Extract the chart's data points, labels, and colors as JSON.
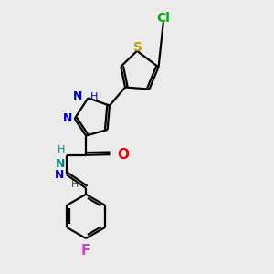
{
  "background_color": "#ebebeb",
  "bond_color": "#000000",
  "bond_width": 1.6,
  "figsize": [
    3.0,
    3.0
  ],
  "dpi": 100,
  "colors": {
    "S": "#b8a000",
    "Cl": "#00aa00",
    "N": "#0000cc",
    "NH": "#008888",
    "N_imine": "#0000cc",
    "O": "#dd0000",
    "F": "#cc44cc",
    "C": "#000000",
    "H": "#444444"
  }
}
